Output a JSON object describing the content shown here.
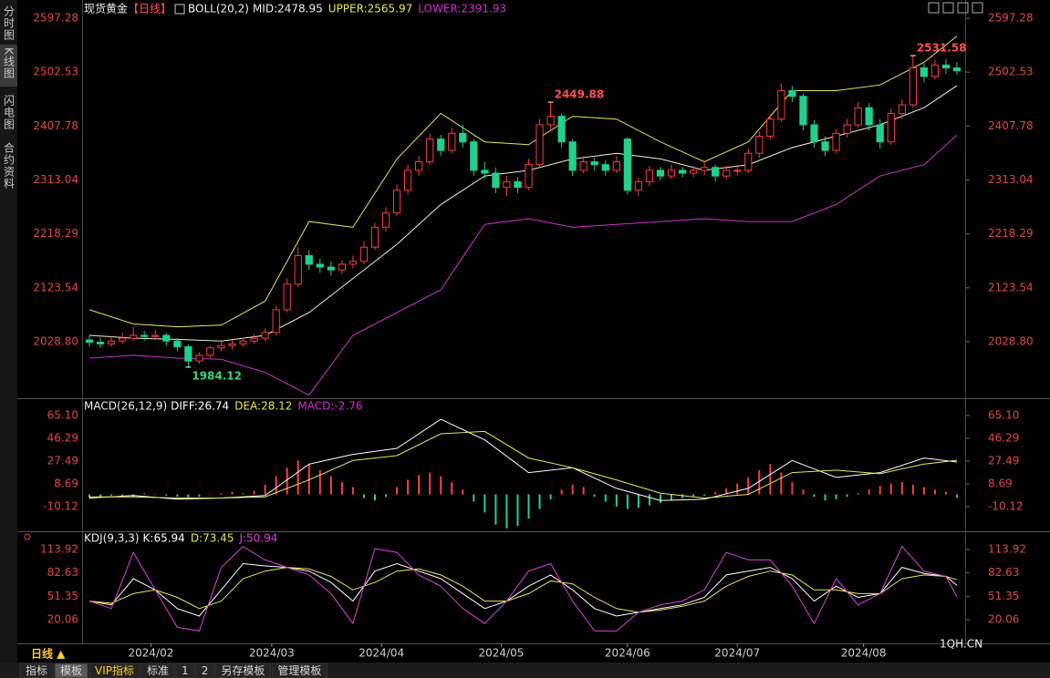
{
  "ui": {
    "sidebar": [
      "分时图",
      "K线图",
      "闪电图",
      "合约资料"
    ],
    "sidebar_active": 1,
    "period_button": "日线 ▲",
    "tabs": [
      "指标",
      "模板",
      "VIP指标",
      "标准",
      "1",
      "2",
      "另存模板",
      "管理模板"
    ],
    "active_tab": 1,
    "watermark": "1QH.CN"
  },
  "chart_data": [
    {
      "type": "candlestick",
      "title": "现货黄金",
      "period": "【日线】",
      "indicator": "BOLL(20,2)",
      "up_color": "#ff3c3c",
      "down_color": "#20d08c",
      "xlim": [
        0,
        80
      ],
      "ylim": [
        1932.7,
        2616.5
      ],
      "yticks": [
        2597.28,
        2502.53,
        2407.78,
        2313.04,
        2218.29,
        2123.54,
        {
          "value": 2028.8,
          "label": "2028.80"
        }
      ],
      "candles": [
        [
          2032,
          2040,
          2020,
          2028
        ],
        [
          2028,
          2036,
          2018,
          2025
        ],
        [
          2025,
          2038,
          2020,
          2030
        ],
        [
          2030,
          2045,
          2025,
          2035
        ],
        [
          2035,
          2055,
          2030,
          2040
        ],
        [
          2040,
          2048,
          2030,
          2038
        ],
        [
          2038,
          2050,
          2032,
          2040
        ],
        [
          2040,
          2044,
          2022,
          2030
        ],
        [
          2030,
          2035,
          2012,
          2020
        ],
        [
          2020,
          2024,
          1984.12,
          1995
        ],
        [
          1995,
          2010,
          1990,
          2005
        ],
        [
          2005,
          2022,
          2000,
          2018
        ],
        [
          2018,
          2030,
          2012,
          2022
        ],
        [
          2022,
          2032,
          2015,
          2025
        ],
        [
          2025,
          2036,
          2020,
          2030
        ],
        [
          2030,
          2042,
          2025,
          2035
        ],
        [
          2035,
          2052,
          2030,
          2045
        ],
        [
          2045,
          2092,
          2040,
          2085
        ],
        [
          2085,
          2140,
          2080,
          2130
        ],
        [
          2130,
          2195,
          2125,
          2180
        ],
        [
          2180,
          2190,
          2155,
          2165
        ],
        [
          2165,
          2175,
          2150,
          2160
        ],
        [
          2160,
          2170,
          2145,
          2155
        ],
        [
          2155,
          2172,
          2148,
          2165
        ],
        [
          2165,
          2180,
          2158,
          2170
        ],
        [
          2170,
          2205,
          2165,
          2195
        ],
        [
          2195,
          2238,
          2190,
          2230
        ],
        [
          2230,
          2265,
          2222,
          2255
        ],
        [
          2255,
          2305,
          2250,
          2295
        ],
        [
          2295,
          2340,
          2288,
          2330
        ],
        [
          2330,
          2355,
          2320,
          2345
        ],
        [
          2345,
          2395,
          2340,
          2385
        ],
        [
          2385,
          2392,
          2355,
          2365
        ],
        [
          2365,
          2405,
          2360,
          2395
        ],
        [
          2395,
          2410,
          2370,
          2380
        ],
        [
          2380,
          2385,
          2320,
          2330
        ],
        [
          2330,
          2345,
          2315,
          2325
        ],
        [
          2325,
          2335,
          2290,
          2300
        ],
        [
          2300,
          2320,
          2285,
          2310
        ],
        [
          2310,
          2318,
          2290,
          2300
        ],
        [
          2300,
          2350,
          2295,
          2340
        ],
        [
          2340,
          2420,
          2335,
          2410
        ],
        [
          2410,
          2449.88,
          2400,
          2425
        ],
        [
          2425,
          2430,
          2370,
          2380
        ],
        [
          2380,
          2385,
          2320,
          2330
        ],
        [
          2330,
          2355,
          2325,
          2345
        ],
        [
          2345,
          2352,
          2330,
          2340
        ],
        [
          2340,
          2348,
          2320,
          2330
        ],
        [
          2330,
          2355,
          2325,
          2345
        ],
        [
          2385,
          2388,
          2288,
          2295
        ],
        [
          2295,
          2318,
          2285,
          2310
        ],
        [
          2310,
          2338,
          2302,
          2330
        ],
        [
          2330,
          2336,
          2312,
          2320
        ],
        [
          2320,
          2340,
          2315,
          2330
        ],
        [
          2330,
          2336,
          2318,
          2325
        ],
        [
          2325,
          2338,
          2318,
          2330
        ],
        [
          2330,
          2345,
          2322,
          2335
        ],
        [
          2335,
          2340,
          2310,
          2320
        ],
        [
          2320,
          2338,
          2314,
          2330
        ],
        [
          2330,
          2340,
          2322,
          2330
        ],
        [
          2330,
          2368,
          2325,
          2360
        ],
        [
          2360,
          2398,
          2352,
          2390
        ],
        [
          2390,
          2428,
          2385,
          2420
        ],
        [
          2420,
          2483,
          2415,
          2470
        ],
        [
          2470,
          2478,
          2450,
          2460
        ],
        [
          2460,
          2465,
          2400,
          2410
        ],
        [
          2410,
          2418,
          2370,
          2380
        ],
        [
          2380,
          2390,
          2355,
          2365
        ],
        [
          2365,
          2402,
          2360,
          2395
        ],
        [
          2395,
          2420,
          2388,
          2410
        ],
        [
          2410,
          2450,
          2405,
          2440
        ],
        [
          2440,
          2448,
          2400,
          2410
        ],
        [
          2410,
          2420,
          2368,
          2380
        ],
        [
          2380,
          2438,
          2375,
          2430
        ],
        [
          2430,
          2455,
          2420,
          2445
        ],
        [
          2445,
          2531.58,
          2440,
          2510
        ],
        [
          2510,
          2518,
          2485,
          2495
        ],
        [
          2495,
          2525,
          2490,
          2515
        ],
        [
          2515,
          2525,
          2500,
          2510
        ],
        [
          2510,
          2520,
          2498,
          2505
        ]
      ],
      "x": [
        0.5,
        4.5,
        8.5,
        12.5,
        16.5,
        20.5,
        24.5,
        28.5,
        32.5,
        36.5,
        40.5,
        44.5,
        48.5,
        52.5,
        56.5,
        60.5,
        64.5,
        68.5,
        72.5,
        76.5,
        79.5
      ],
      "series": [
        {
          "name": "MID:2478.95",
          "color": "#f0f0d8",
          "values": [
            2040,
            2035,
            2033,
            2030,
            2040,
            2080,
            2140,
            2200,
            2270,
            2320,
            2330,
            2350,
            2360,
            2350,
            2330,
            2340,
            2370,
            2390,
            2410,
            2440,
            2478.95
          ]
        },
        {
          "name": "UPPER:2565.97",
          "color": "#e8e850",
          "values": [
            2085,
            2060,
            2055,
            2058,
            2100,
            2240,
            2230,
            2350,
            2430,
            2380,
            2375,
            2425,
            2420,
            2380,
            2345,
            2380,
            2470,
            2470,
            2480,
            2520,
            2565.97
          ]
        },
        {
          "name": "LOWER:2391.93",
          "color": "#d030d0",
          "values": [
            2000,
            2005,
            2000,
            1998,
            1975,
            1935,
            2040,
            2080,
            2120,
            2235,
            2245,
            2230,
            2235,
            2240,
            2245,
            2240,
            2240,
            2270,
            2320,
            2340,
            2391.93
          ]
        }
      ]
    },
    {
      "type": "macd",
      "indicator": "MACD(26,12,9)",
      "xlim": [
        0,
        80
      ],
      "ylim": [
        -29.7,
        77.1
      ],
      "yticks": [
        {
          "value": 65.1,
          "label": "65.10"
        },
        46.29,
        27.49,
        8.69,
        -10.12
      ],
      "x": [
        0.5,
        4.5,
        8.5,
        12.5,
        16.5,
        20.5,
        24.5,
        28.5,
        32.5,
        36.5,
        40.5,
        44.5,
        48.5,
        52.5,
        56.5,
        60.5,
        64.5,
        68.5,
        72.5,
        76.5,
        79.5
      ],
      "series": [
        {
          "name": "DIFF:26.74",
          "color": "#ffffff",
          "values": [
            -3,
            -1,
            -4,
            -3,
            -1,
            25,
            33,
            38,
            62,
            45,
            18,
            22,
            5,
            -5,
            -4,
            5,
            28,
            14,
            18,
            30,
            26.74
          ]
        },
        {
          "name": "DEA:28.12",
          "color": "#e8e850",
          "values": [
            -2,
            -2,
            -3,
            -3,
            -2,
            12,
            28,
            32,
            50,
            52,
            30,
            22,
            12,
            1,
            -3,
            0,
            18,
            20,
            17,
            25,
            28.12
          ]
        }
      ],
      "histogram": {
        "name": "MACD:-2.76",
        "color": "#d030d0",
        "up_color": "#ff4040",
        "down_color": "#20d0a0",
        "values": [
          -3,
          -2,
          -1,
          -2,
          -2,
          1,
          0,
          -1,
          -2,
          -3,
          -2,
          0,
          1,
          2,
          1,
          3,
          8,
          15,
          22,
          28,
          25,
          20,
          15,
          10,
          6,
          -3,
          -5,
          -2,
          6,
          12,
          16,
          18,
          15,
          10,
          4,
          -6,
          -15,
          -25,
          -28,
          -26,
          -20,
          -12,
          -4,
          4,
          8,
          6,
          -2,
          -6,
          -10,
          -12,
          -11,
          -9,
          -7,
          -5,
          -3,
          -2,
          -1,
          2,
          5,
          9,
          14,
          20,
          25,
          18,
          10,
          4,
          -2,
          -5,
          -4,
          -2,
          1,
          4,
          7,
          9,
          10,
          8,
          6,
          4,
          2,
          -2.76
        ]
      }
    },
    {
      "type": "kdj",
      "indicator": "KDJ(9,3,3)",
      "xlim": [
        0,
        80
      ],
      "ylim": [
        -10.4,
        135.9
      ],
      "yticks": [
        113.92,
        82.63,
        51.35,
        20.06
      ],
      "xticks": [
        {
          "value": 6.1,
          "label": "2024/02"
        },
        {
          "value": 17.1,
          "label": "2024/03"
        },
        {
          "value": 27.1,
          "label": "2024/04"
        },
        {
          "value": 38.0,
          "label": "2024/05"
        },
        {
          "value": 49.5,
          "label": "2024/06"
        },
        {
          "value": 59.5,
          "label": "2024/07"
        },
        {
          "value": 71.0,
          "label": "2024/08"
        }
      ],
      "x": [
        0.5,
        2.5,
        4.5,
        6.5,
        8.5,
        10.5,
        12.5,
        14.5,
        16.5,
        18.5,
        20.5,
        22.5,
        24.5,
        26.5,
        28.5,
        30.5,
        32.5,
        34.5,
        36.5,
        38.5,
        40.5,
        42.5,
        44.5,
        46.5,
        48.5,
        50.5,
        52.5,
        54.5,
        56.5,
        58.5,
        60.5,
        62.5,
        64.5,
        66.5,
        68.5,
        70.5,
        72.5,
        74.5,
        76.5,
        78.5,
        79.5
      ],
      "series": [
        {
          "name": "K:65.94",
          "color": "#ffffff",
          "values": [
            45,
            40,
            75,
            60,
            35,
            25,
            60,
            95,
            92,
            90,
            85,
            70,
            45,
            85,
            95,
            85,
            75,
            55,
            35,
            45,
            65,
            80,
            60,
            35,
            25,
            30,
            35,
            40,
            50,
            80,
            85,
            90,
            75,
            45,
            65,
            50,
            55,
            90,
            82,
            78,
            65.94
          ]
        },
        {
          "name": "D:73.45",
          "color": "#e8e850",
          "values": [
            45,
            42,
            55,
            60,
            50,
            35,
            45,
            75,
            85,
            90,
            88,
            78,
            60,
            70,
            85,
            88,
            80,
            65,
            45,
            45,
            55,
            72,
            68,
            50,
            35,
            30,
            33,
            38,
            45,
            65,
            78,
            85,
            80,
            60,
            60,
            55,
            55,
            75,
            80,
            78,
            73.45
          ]
        },
        {
          "name": "J:50.94",
          "color": "#e040e0",
          "values": [
            45,
            35,
            110,
            60,
            10,
            5,
            90,
            118,
            100,
            90,
            80,
            55,
            15,
            115,
            110,
            80,
            65,
            35,
            15,
            45,
            85,
            95,
            45,
            5,
            5,
            30,
            40,
            45,
            60,
            110,
            100,
            100,
            65,
            15,
            75,
            40,
            55,
            118,
            85,
            78,
            50.94
          ]
        }
      ]
    }
  ]
}
